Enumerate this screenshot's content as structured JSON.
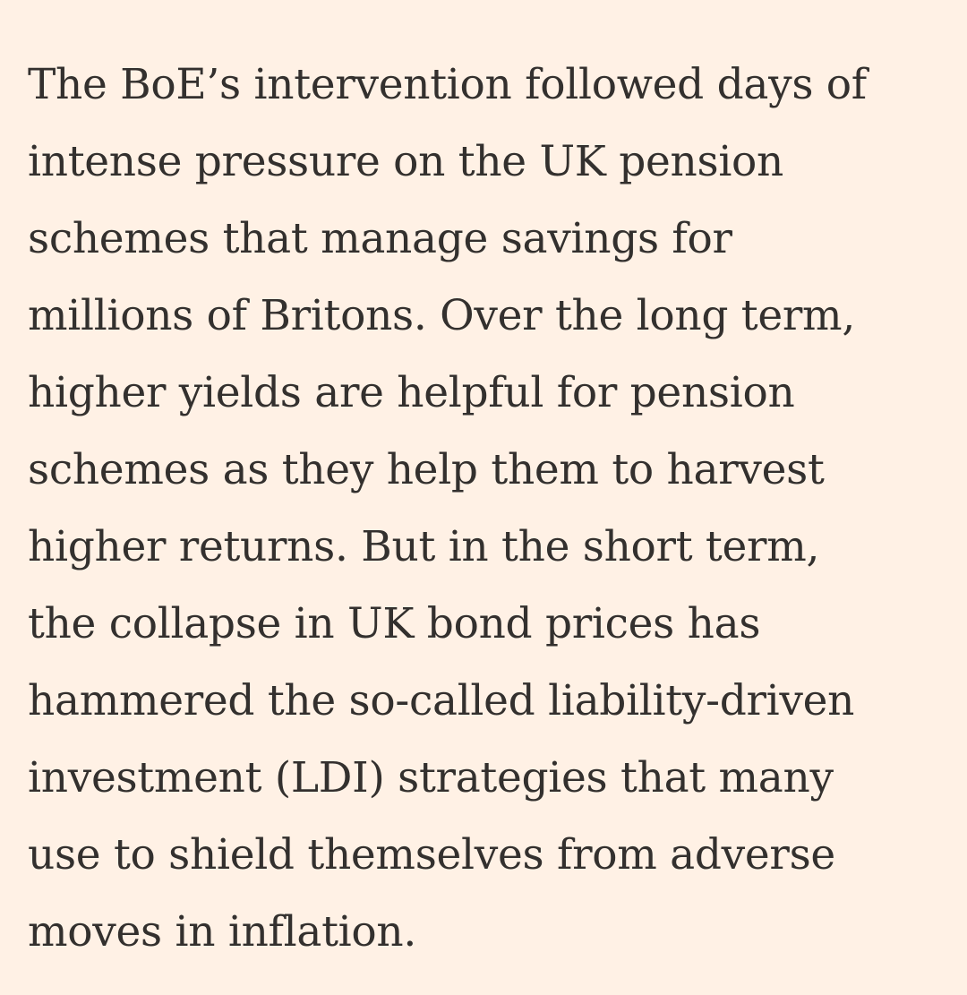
{
  "article": {
    "paragraph_lines": [
      "The BoE’s intervention followed days of",
      "intense pressure on the UK pension",
      "schemes that manage savings for",
      "millions of Britons. Over the long term,",
      "higher yields are helpful for pension",
      "schemes as they help them to harvest",
      "higher returns. But in the short term,",
      "the collapse in UK bond prices has",
      "hammered the so-called liability-driven",
      "investment (LDI) strategies that many",
      "use to shield themselves from adverse",
      "moves in inflation."
    ]
  },
  "colors": {
    "background": "#FFF1E5",
    "text": "#33302E"
  }
}
